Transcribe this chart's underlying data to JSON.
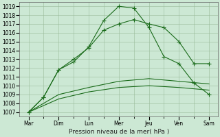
{
  "xlabel": "Pression niveau de la mer( hPa )",
  "ylim": [
    1006.5,
    1019.5
  ],
  "yticks": [
    1007,
    1008,
    1009,
    1010,
    1011,
    1012,
    1013,
    1014,
    1015,
    1016,
    1017,
    1018,
    1019
  ],
  "x_labels": [
    "Mar",
    "Dim",
    "Lun",
    "Mer",
    "Jeu",
    "Ven",
    "Sam"
  ],
  "x_positions": [
    0,
    1,
    2,
    3,
    4,
    5,
    6
  ],
  "line1_marked": {
    "x": [
      0,
      0.5,
      1.0,
      1.5,
      2.0,
      2.5,
      3.0,
      3.5,
      4.0,
      4.5,
      5.0,
      5.5,
      6.0
    ],
    "y": [
      1007.0,
      1008.7,
      1011.8,
      1013.0,
      1014.3,
      1016.3,
      1017.0,
      1017.5,
      1017.0,
      1016.6,
      1015.0,
      1012.5,
      1012.5
    ],
    "color": "#1a6b1a",
    "marker": "+",
    "linewidth": 0.8,
    "markersize": 4
  },
  "line2_marked": {
    "x": [
      0,
      0.5,
      1.0,
      1.5,
      2.0,
      2.5,
      3.0,
      3.5,
      4.0,
      4.5,
      5.0,
      5.5,
      6.0
    ],
    "y": [
      1007.0,
      1008.7,
      1011.8,
      1012.7,
      1014.4,
      1017.4,
      1019.0,
      1018.8,
      1016.6,
      1013.3,
      1012.5,
      1010.3,
      1009.0
    ],
    "color": "#1a6b1a",
    "marker": "+",
    "linewidth": 0.8,
    "markersize": 4
  },
  "line3_flat": {
    "x": [
      0,
      1.0,
      2.0,
      3.0,
      4.0,
      5.0,
      6.0
    ],
    "y": [
      1007.0,
      1009.0,
      1009.8,
      1010.5,
      1010.8,
      1010.5,
      1010.2
    ],
    "color": "#1a6b1a",
    "marker": null,
    "linewidth": 0.8,
    "markersize": 0
  },
  "line4_flat": {
    "x": [
      0,
      1.0,
      2.0,
      3.0,
      4.0,
      5.0,
      6.0
    ],
    "y": [
      1007.0,
      1008.5,
      1009.3,
      1009.8,
      1010.0,
      1009.8,
      1009.5
    ],
    "color": "#1a6b1a",
    "marker": null,
    "linewidth": 0.8,
    "markersize": 0
  },
  "background_color": "#cce8d4",
  "grid_color": "#99bb99",
  "label_fontsize": 6.5,
  "tick_fontsize": 5.5
}
